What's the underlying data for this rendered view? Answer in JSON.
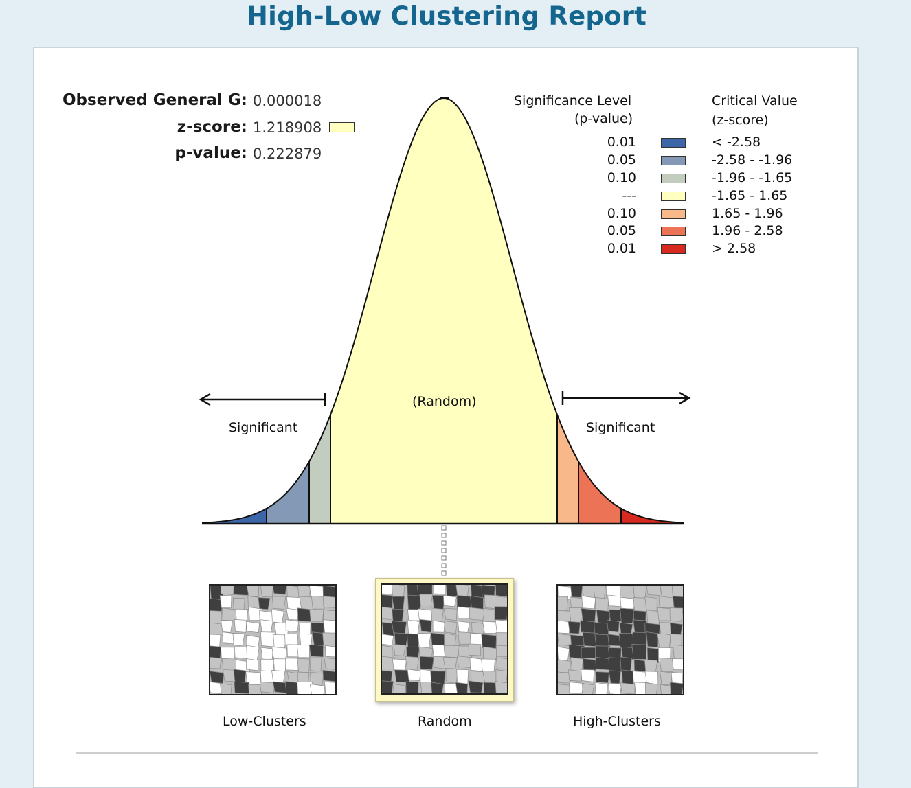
{
  "report": {
    "title": "High-Low Clustering Report"
  },
  "stats": {
    "observed_label": "Observed General G:",
    "observed_value": "0.000018",
    "zscore_label": "z-score:",
    "zscore_value": "1.218908",
    "pvalue_label": "p-value:",
    "pvalue_value": "0.222879",
    "zscore_swatch_color": "#ffffc0"
  },
  "legend": {
    "sig_header_line1": "Significance Level",
    "sig_header_line2": "(p-value)",
    "crit_header_line1": "Critical Value",
    "crit_header_line2": "(z-score)",
    "rows": [
      {
        "p": "0.01",
        "z": "< -2.58",
        "color": "#3c66a8"
      },
      {
        "p": "0.05",
        "z": "-2.58 - -1.96",
        "color": "#8399b5"
      },
      {
        "p": "0.10",
        "z": "-1.96 - -1.65",
        "color": "#c2ccbf"
      },
      {
        "p": "---",
        "z": "-1.65 - 1.65",
        "color": "#ffffc0"
      },
      {
        "p": "0.10",
        "z": "1.65 - 1.96",
        "color": "#f9b88a"
      },
      {
        "p": "0.05",
        "z": "1.96 - 2.58",
        "color": "#ec7356"
      },
      {
        "p": "0.01",
        "z": "> 2.58",
        "color": "#d7291f"
      }
    ]
  },
  "curve": {
    "random_label": "(Random)",
    "significant_left": "Significant",
    "significant_right": "Significant"
  },
  "thumbnails": {
    "low_label": "Low-Clusters",
    "random_label": "Random",
    "high_label": "High-Clusters",
    "selected": "random"
  }
}
